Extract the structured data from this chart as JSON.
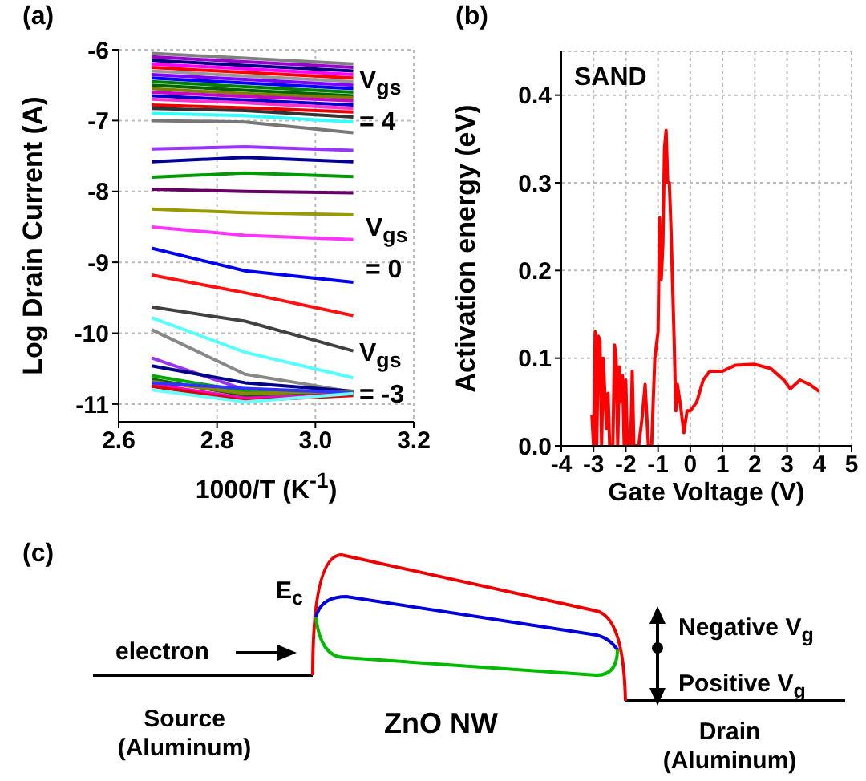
{
  "chart_data": [
    {
      "type": "line",
      "title": "(a)",
      "xlabel": "1000/T (K$^{-1}$)",
      "ylabel": "Log Drain Current (A)",
      "x": [
        2.667,
        2.857,
        3.077
      ],
      "xlim": [
        2.6,
        3.2
      ],
      "xticks": [
        2.6,
        2.8,
        {
          "value": 3,
          "label": "3.0"
        },
        3.2
      ],
      "ylim": [
        -11.25,
        -6
      ],
      "yticks": [
        -6,
        -7,
        -8,
        -9,
        -10,
        -11
      ],
      "grid": true,
      "marker": "none",
      "annotations": [
        "V$_{gs}$ = 4",
        "V$_{gs}$ = 0",
        "V$_{gs}$ = -3"
      ],
      "series": [
        {
          "color": "#808080",
          "values": [
            -6.05,
            -6.12,
            -6.2
          ]
        },
        {
          "color": "#9900cc",
          "values": [
            -6.1,
            -6.17,
            -6.25
          ]
        },
        {
          "color": "#000080",
          "values": [
            -6.15,
            -6.22,
            -6.3
          ]
        },
        {
          "color": "#ff00ff",
          "values": [
            -6.2,
            -6.27,
            -6.35
          ]
        },
        {
          "color": "#ff0000",
          "values": [
            -6.25,
            -6.32,
            -6.4
          ]
        },
        {
          "color": "#999999",
          "values": [
            -6.3,
            -6.37,
            -6.45
          ]
        },
        {
          "color": "#8000ff",
          "values": [
            -6.35,
            -6.42,
            -6.5
          ]
        },
        {
          "color": "#0000ff",
          "values": [
            -6.4,
            -6.47,
            -6.55
          ]
        },
        {
          "color": "#008000",
          "values": [
            -6.45,
            -6.52,
            -6.6
          ]
        },
        {
          "color": "#006400",
          "values": [
            -6.5,
            -6.57,
            -6.65
          ]
        },
        {
          "color": "#808000",
          "values": [
            -6.55,
            -6.62,
            -6.68
          ]
        },
        {
          "color": "#cc00cc",
          "values": [
            -6.6,
            -6.66,
            -6.72
          ]
        },
        {
          "color": "#0000cc",
          "values": [
            -6.65,
            -6.71,
            -6.78
          ]
        },
        {
          "color": "#ff33cc",
          "values": [
            -6.7,
            -6.75,
            -6.83
          ]
        },
        {
          "color": "#ee0000",
          "values": [
            -6.78,
            -6.82,
            -6.88
          ]
        },
        {
          "color": "#333333",
          "values": [
            -6.83,
            -6.86,
            -6.95
          ]
        },
        {
          "color": "#33ffff",
          "values": [
            -6.9,
            -6.93,
            -7.02
          ]
        },
        {
          "color": "#777777",
          "values": [
            -7.0,
            -7.02,
            -7.17
          ]
        },
        {
          "color": "#9933ff",
          "values": [
            -7.4,
            -7.37,
            -7.42
          ]
        },
        {
          "color": "#000099",
          "values": [
            -7.58,
            -7.52,
            -7.58
          ]
        },
        {
          "color": "#009900",
          "values": [
            -7.8,
            -7.74,
            -7.79
          ]
        },
        {
          "color": "#660066",
          "values": [
            -7.97,
            -8.0,
            -8.02
          ]
        },
        {
          "color": "#999900",
          "values": [
            -8.25,
            -8.3,
            -8.33
          ]
        },
        {
          "color": "#ff33ff",
          "values": [
            -8.5,
            -8.62,
            -8.68
          ]
        },
        {
          "color": "#0000ee",
          "values": [
            -8.8,
            -9.12,
            -9.28
          ]
        },
        {
          "color": "#ff1111",
          "values": [
            -9.18,
            -9.43,
            -9.75
          ]
        },
        {
          "color": "#404040",
          "values": [
            -9.63,
            -9.83,
            -10.25
          ]
        },
        {
          "color": "#55ffff",
          "values": [
            -9.78,
            -10.27,
            -10.63
          ]
        },
        {
          "color": "#888888",
          "values": [
            -9.95,
            -10.58,
            -10.83
          ]
        },
        {
          "color": "#9933ee",
          "values": [
            -10.35,
            -10.8,
            null
          ]
        },
        {
          "color": "#000088",
          "values": [
            -10.46,
            -10.7,
            -10.82
          ]
        },
        {
          "color": "#00aa00",
          "values": [
            -10.6,
            -10.82,
            -10.85
          ]
        },
        {
          "color": "#006600",
          "values": [
            -10.65,
            -10.88,
            -10.85
          ]
        },
        {
          "color": "#888800",
          "values": [
            -10.68,
            -10.85,
            -10.82
          ]
        },
        {
          "color": "#ff00cc",
          "values": [
            -10.72,
            -10.92,
            -10.86
          ]
        },
        {
          "color": "#dd0000",
          "values": [
            -10.75,
            -10.95,
            -10.88
          ]
        },
        {
          "color": "#3333ff",
          "values": [
            -10.7,
            -10.78,
            -10.84
          ]
        },
        {
          "color": "#66ffff",
          "values": [
            -10.8,
            -10.97,
            -10.85
          ]
        }
      ]
    },
    {
      "type": "line",
      "title": "(b)",
      "xlabel": "Gate Voltage (V)",
      "ylabel": "Activation energy (eV)",
      "xlim": [
        -4,
        5
      ],
      "xticks": [
        -4,
        -3,
        -2,
        -1,
        0,
        1,
        2,
        3,
        4,
        5
      ],
      "ylim": [
        0,
        0.45
      ],
      "yticks": [
        {
          "value": 0,
          "label": "0.0"
        },
        0.1,
        0.2,
        0.3,
        0.4
      ],
      "grid": true,
      "marker": "none",
      "annotations": [
        "SAND"
      ],
      "series": [
        {
          "color": "#ff0000",
          "x": [
            -3.05,
            -3.0,
            -2.95,
            -2.9,
            -2.85,
            -2.8,
            -2.75,
            -2.7,
            -2.65,
            -2.6,
            -2.55,
            -2.5,
            -2.4,
            -2.35,
            -2.3,
            -2.25,
            -2.2,
            -2.15,
            -2.1,
            -2.05,
            -2.0,
            -1.95,
            -1.85,
            -1.8,
            -1.75,
            -1.6,
            -1.5,
            -1.4,
            -1.3,
            -1.2,
            -1.1,
            -1.0,
            -0.95,
            -0.9,
            -0.85,
            -0.8,
            -0.75,
            -0.7,
            -0.65,
            -0.6,
            -0.5,
            -0.45,
            -0.4,
            -0.3,
            -0.2,
            -0.1,
            0,
            0.2,
            0.4,
            0.6,
            1.0,
            1.4,
            2.0,
            2.5,
            2.9,
            3.1,
            3.4,
            3.7,
            4.0
          ],
          "values": [
            0.035,
            0,
            0.13,
            0,
            0.125,
            0.12,
            0,
            0.1,
            0.06,
            0.02,
            0.06,
            0,
            0,
            0.115,
            0.1,
            0,
            0.09,
            0.05,
            0.08,
            0,
            0.075,
            0,
            0,
            0.085,
            0,
            0,
            0.03,
            0.07,
            0,
            0,
            0.1,
            0.13,
            0.26,
            0.19,
            0.23,
            0.34,
            0.36,
            0.3,
            0.3,
            0.25,
            0.12,
            0.04,
            0.07,
            0.045,
            0.015,
            0.04,
            0.04,
            0.05,
            0.075,
            0.085,
            0.085,
            0.092,
            0.093,
            0.088,
            0.075,
            0.065,
            0.075,
            0.07,
            0.062
          ]
        }
      ]
    },
    {
      "type": "other",
      "title": "(c)",
      "annotations": [
        "E$_{c}$",
        "electron",
        "Negative V$_{g}$",
        "Positive V$_{g}$",
        "Source (Aluminum)",
        "ZnO NW",
        "Drain (Aluminum)"
      ]
    }
  ]
}
